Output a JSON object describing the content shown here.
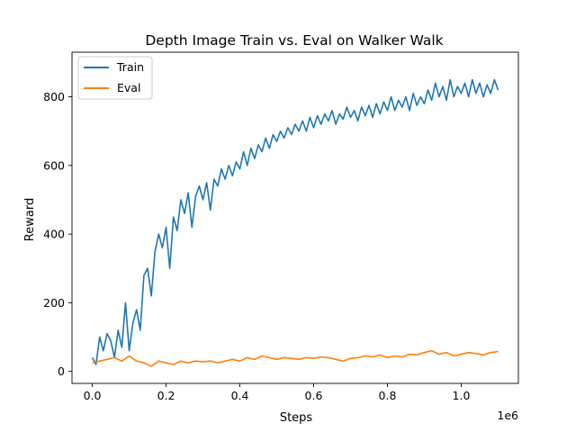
{
  "chart_data": {
    "type": "line",
    "title": "Depth Image Train vs. Eval on Walker Walk",
    "xlabel": "Steps",
    "ylabel": "Reward",
    "x_offset_label": "1e6",
    "xlim": [
      -0.055,
      1.155
    ],
    "ylim": [
      -35,
      930
    ],
    "x_ticks": [
      0.0,
      0.2,
      0.4,
      0.6,
      0.8,
      1.0
    ],
    "x_tick_labels": [
      "0.0",
      "0.2",
      "0.4",
      "0.6",
      "0.8",
      "1.0"
    ],
    "y_ticks": [
      0,
      200,
      400,
      600,
      800
    ],
    "y_tick_labels": [
      "0",
      "200",
      "400",
      "600",
      "800"
    ],
    "grid": false,
    "legend_position": "top-left",
    "series": [
      {
        "name": "Train",
        "color": "#1f77b4",
        "x": [
          0.0,
          0.01,
          0.02,
          0.03,
          0.04,
          0.05,
          0.06,
          0.07,
          0.08,
          0.09,
          0.1,
          0.11,
          0.12,
          0.13,
          0.14,
          0.15,
          0.16,
          0.17,
          0.18,
          0.19,
          0.2,
          0.21,
          0.22,
          0.23,
          0.24,
          0.25,
          0.26,
          0.27,
          0.28,
          0.29,
          0.3,
          0.31,
          0.32,
          0.33,
          0.34,
          0.35,
          0.36,
          0.37,
          0.38,
          0.39,
          0.4,
          0.41,
          0.42,
          0.43,
          0.44,
          0.45,
          0.46,
          0.47,
          0.48,
          0.49,
          0.5,
          0.51,
          0.52,
          0.53,
          0.54,
          0.55,
          0.56,
          0.57,
          0.58,
          0.59,
          0.6,
          0.61,
          0.62,
          0.63,
          0.64,
          0.65,
          0.66,
          0.67,
          0.68,
          0.69,
          0.7,
          0.71,
          0.72,
          0.73,
          0.74,
          0.75,
          0.76,
          0.77,
          0.78,
          0.79,
          0.8,
          0.81,
          0.82,
          0.83,
          0.84,
          0.85,
          0.86,
          0.87,
          0.88,
          0.89,
          0.9,
          0.91,
          0.92,
          0.93,
          0.94,
          0.95,
          0.96,
          0.97,
          0.98,
          0.99,
          1.0,
          1.01,
          1.02,
          1.03,
          1.04,
          1.05,
          1.06,
          1.07,
          1.08,
          1.09,
          1.1
        ],
        "values": [
          40,
          20,
          100,
          60,
          110,
          90,
          40,
          120,
          70,
          200,
          60,
          140,
          180,
          120,
          280,
          300,
          220,
          350,
          400,
          360,
          420,
          300,
          450,
          410,
          500,
          460,
          520,
          420,
          510,
          540,
          500,
          550,
          470,
          560,
          540,
          590,
          560,
          600,
          570,
          610,
          590,
          640,
          600,
          650,
          620,
          660,
          640,
          680,
          650,
          690,
          670,
          700,
          680,
          710,
          690,
          720,
          700,
          730,
          700,
          740,
          710,
          745,
          720,
          750,
          730,
          760,
          720,
          750,
          735,
          770,
          740,
          760,
          730,
          770,
          745,
          775,
          740,
          780,
          750,
          785,
          760,
          800,
          760,
          790,
          770,
          800,
          760,
          810,
          775,
          800,
          780,
          820,
          790,
          840,
          800,
          830,
          790,
          850,
          800,
          830,
          810,
          840,
          800,
          850,
          810,
          840,
          800,
          835,
          810,
          850,
          820
        ]
      },
      {
        "name": "Eval",
        "color": "#ff7f0e",
        "x": [
          0.0,
          0.02,
          0.04,
          0.06,
          0.08,
          0.1,
          0.12,
          0.14,
          0.16,
          0.18,
          0.2,
          0.22,
          0.24,
          0.26,
          0.28,
          0.3,
          0.32,
          0.34,
          0.36,
          0.38,
          0.4,
          0.42,
          0.44,
          0.46,
          0.48,
          0.5,
          0.52,
          0.54,
          0.56,
          0.58,
          0.6,
          0.62,
          0.64,
          0.66,
          0.68,
          0.7,
          0.72,
          0.74,
          0.76,
          0.78,
          0.8,
          0.82,
          0.84,
          0.86,
          0.88,
          0.9,
          0.92,
          0.94,
          0.96,
          0.98,
          1.0,
          1.02,
          1.04,
          1.06,
          1.08,
          1.1
        ],
        "values": [
          25,
          30,
          35,
          40,
          30,
          45,
          30,
          25,
          15,
          30,
          25,
          20,
          30,
          25,
          30,
          28,
          30,
          25,
          30,
          35,
          30,
          40,
          35,
          45,
          40,
          35,
          40,
          38,
          35,
          40,
          38,
          42,
          40,
          35,
          30,
          38,
          40,
          45,
          42,
          48,
          40,
          45,
          42,
          50,
          48,
          55,
          60,
          50,
          55,
          45,
          50,
          55,
          52,
          48,
          55,
          58
        ]
      }
    ]
  }
}
